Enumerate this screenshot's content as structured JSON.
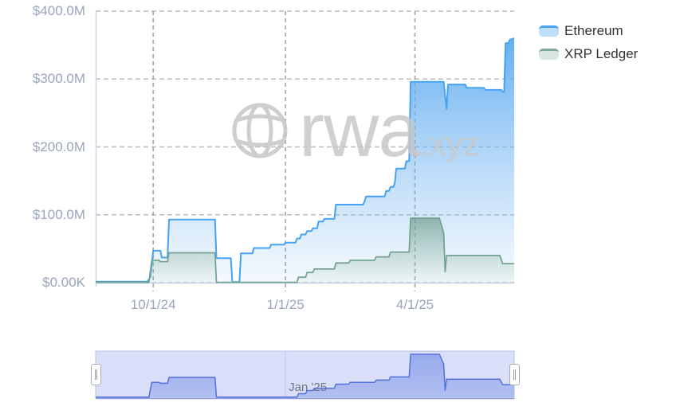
{
  "watermark": {
    "brand": "rwa",
    "tld": ".xyz",
    "icon": "globe-icon",
    "color": "#c6c6c6"
  },
  "legend": [
    {
      "label": "Ethereum",
      "line_color": "#47a3f1",
      "fill_color": "#bfdff8"
    },
    {
      "label": "XRP Ledger",
      "line_color": "#7da99a",
      "fill_color": "#d9e6e0"
    }
  ],
  "chart_data": {
    "type": "area",
    "title": "",
    "grid": true,
    "legend_position": "top-right",
    "unit": "USD",
    "x_axis": {
      "range": [
        "2024-08-22",
        "2025-06-09"
      ],
      "ticks": [
        {
          "label": "10/1/24",
          "date": "2024-10-01"
        },
        {
          "label": "1/1/25",
          "date": "2025-01-01"
        },
        {
          "label": "4/1/25",
          "date": "2025-04-01"
        }
      ]
    },
    "y_axis": {
      "min": 0,
      "max": 400,
      "unit_hint": "millions USD",
      "ticks": [
        {
          "label": "$400.0M",
          "value": 400
        },
        {
          "label": "$300.0M",
          "value": 300
        },
        {
          "label": "$200.0M",
          "value": 200
        },
        {
          "label": "$100.0M",
          "value": 100
        },
        {
          "label": "$0.00K",
          "value": 0
        }
      ]
    },
    "series": [
      {
        "name": "Ethereum",
        "line_color": "#47a3f1",
        "fill_top": "#55a7f0",
        "points": [
          [
            "2024-08-22",
            1.5
          ],
          [
            "2024-09-27",
            1.5
          ],
          [
            "2024-09-29",
            8
          ],
          [
            "2024-10-01",
            47
          ],
          [
            "2024-10-06",
            47
          ],
          [
            "2024-10-07",
            37
          ],
          [
            "2024-10-11",
            37
          ],
          [
            "2024-10-12",
            93
          ],
          [
            "2024-11-13",
            93
          ],
          [
            "2024-11-14",
            36
          ],
          [
            "2024-11-24",
            36
          ],
          [
            "2024-11-25",
            1
          ],
          [
            "2024-11-30",
            1
          ],
          [
            "2024-12-01",
            43
          ],
          [
            "2024-12-09",
            43
          ],
          [
            "2024-12-10",
            51
          ],
          [
            "2024-12-21",
            51
          ],
          [
            "2024-12-22",
            56
          ],
          [
            "2024-12-31",
            56
          ],
          [
            "2025-01-01",
            59
          ],
          [
            "2025-01-08",
            59
          ],
          [
            "2025-01-09",
            65
          ],
          [
            "2025-01-11",
            65
          ],
          [
            "2025-01-12",
            71
          ],
          [
            "2025-01-15",
            71
          ],
          [
            "2025-01-16",
            76
          ],
          [
            "2025-01-19",
            76
          ],
          [
            "2025-01-20",
            80
          ],
          [
            "2025-01-23",
            80
          ],
          [
            "2025-01-24",
            90
          ],
          [
            "2025-01-27",
            90
          ],
          [
            "2025-01-28",
            94
          ],
          [
            "2025-02-04",
            94
          ],
          [
            "2025-02-05",
            115
          ],
          [
            "2025-02-24",
            115
          ],
          [
            "2025-02-25",
            120
          ],
          [
            "2025-02-26",
            127
          ],
          [
            "2025-03-11",
            127
          ],
          [
            "2025-03-12",
            135
          ],
          [
            "2025-03-14",
            135
          ],
          [
            "2025-03-15",
            141
          ],
          [
            "2025-03-17",
            141
          ],
          [
            "2025-03-18",
            147
          ],
          [
            "2025-03-19",
            168
          ],
          [
            "2025-03-25",
            168
          ],
          [
            "2025-03-26",
            179
          ],
          [
            "2025-03-28",
            179
          ],
          [
            "2025-03-29",
            296
          ],
          [
            "2025-04-21",
            296
          ],
          [
            "2025-04-23",
            256
          ],
          [
            "2025-04-24",
            292
          ],
          [
            "2025-05-06",
            292
          ],
          [
            "2025-05-07",
            287
          ],
          [
            "2025-05-19",
            287
          ],
          [
            "2025-05-20",
            284
          ],
          [
            "2025-05-31",
            284
          ],
          [
            "2025-06-01",
            281
          ],
          [
            "2025-06-02",
            281
          ],
          [
            "2025-06-03",
            353
          ],
          [
            "2025-06-05",
            353
          ],
          [
            "2025-06-06",
            358
          ],
          [
            "2025-06-09",
            360
          ]
        ]
      },
      {
        "name": "XRP Ledger",
        "line_color": "#76a492",
        "fill_top": "#6d9d8b",
        "points": [
          [
            "2024-08-22",
            0.3
          ],
          [
            "2024-09-28",
            0.3
          ],
          [
            "2024-09-30",
            33
          ],
          [
            "2024-10-05",
            33
          ],
          [
            "2024-10-06",
            31
          ],
          [
            "2024-10-11",
            31
          ],
          [
            "2024-10-12",
            44
          ],
          [
            "2024-11-13",
            44
          ],
          [
            "2024-11-14",
            0.5
          ],
          [
            "2025-01-09",
            0.5
          ],
          [
            "2025-01-10",
            8
          ],
          [
            "2025-01-15",
            8
          ],
          [
            "2025-01-16",
            15
          ],
          [
            "2025-01-20",
            15
          ],
          [
            "2025-01-21",
            20
          ],
          [
            "2025-02-04",
            20
          ],
          [
            "2025-02-05",
            29
          ],
          [
            "2025-02-14",
            29
          ],
          [
            "2025-02-15",
            33
          ],
          [
            "2025-03-04",
            33
          ],
          [
            "2025-03-05",
            38
          ],
          [
            "2025-03-14",
            38
          ],
          [
            "2025-03-15",
            45
          ],
          [
            "2025-03-28",
            45
          ],
          [
            "2025-03-29",
            95
          ],
          [
            "2025-04-18",
            95
          ],
          [
            "2025-04-21",
            73
          ],
          [
            "2025-04-22",
            16
          ],
          [
            "2025-04-23",
            40
          ],
          [
            "2025-05-30",
            40
          ],
          [
            "2025-06-01",
            28
          ],
          [
            "2025-06-09",
            28
          ]
        ]
      }
    ],
    "navigator": {
      "visible": true,
      "selected_range": "full",
      "label": "Jan '25",
      "label_date": "2025-01-01",
      "series_index": 1,
      "line_color": "#5272dd",
      "fill_color": "#8099e8",
      "mask_color": "#dbdef8"
    }
  }
}
